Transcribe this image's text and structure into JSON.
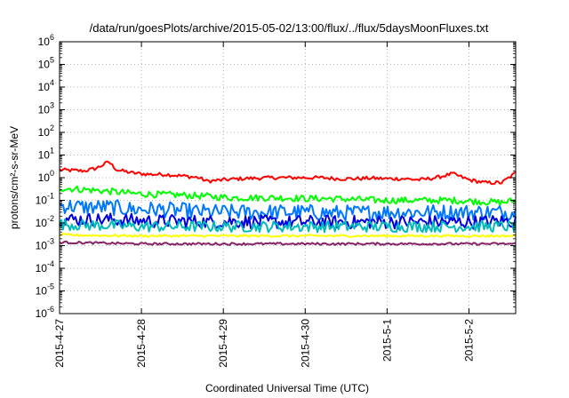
{
  "chart_data": {
    "type": "line",
    "title": "/data/run/goesPlots/archive/2015-05-02/13:00/flux/../flux/5daysMoonFluxes.txt",
    "xlabel": "Coordinated Universal Time (UTC)",
    "ylabel": "protons/cm²-s-sr-MeV",
    "yscale": "log",
    "ylim": [
      1e-06,
      1000000.0
    ],
    "xlim": [
      0,
      5.57
    ],
    "x_ticks": [
      {
        "x": 0,
        "label": "2015-4-27"
      },
      {
        "x": 1,
        "label": "2015-4-28"
      },
      {
        "x": 2,
        "label": "2015-4-29"
      },
      {
        "x": 3,
        "label": "2015-4-30"
      },
      {
        "x": 4,
        "label": "2015-5-1"
      },
      {
        "x": 5,
        "label": "2015-5-2"
      }
    ],
    "y_ticks": [
      {
        "exp": -6,
        "label": "10-6"
      },
      {
        "exp": -5,
        "label": "10-5"
      },
      {
        "exp": -4,
        "label": "10-4"
      },
      {
        "exp": -3,
        "label": "10-3"
      },
      {
        "exp": -2,
        "label": "10-2"
      },
      {
        "exp": -1,
        "label": "10-1"
      },
      {
        "exp": 0,
        "label": "100"
      },
      {
        "exp": 1,
        "label": "101"
      },
      {
        "exp": 2,
        "label": "102"
      },
      {
        "exp": 3,
        "label": "103"
      },
      {
        "exp": 4,
        "label": "104"
      },
      {
        "exp": 5,
        "label": "105"
      },
      {
        "exp": 6,
        "label": "106"
      }
    ],
    "grid": true,
    "series": [
      {
        "color": "#ff0000",
        "points": [
          [
            0,
            2.2
          ],
          [
            0.3,
            2.0
          ],
          [
            0.45,
            2.6
          ],
          [
            0.6,
            5.0
          ],
          [
            0.7,
            2.2
          ],
          [
            0.9,
            1.6
          ],
          [
            1.1,
            1.4
          ],
          [
            1.3,
            1.4
          ],
          [
            1.5,
            1.2
          ],
          [
            1.7,
            1.0
          ],
          [
            1.8,
            0.7
          ],
          [
            2.0,
            0.8
          ],
          [
            2.2,
            0.9
          ],
          [
            2.4,
            0.95
          ],
          [
            2.6,
            1.0
          ],
          [
            2.8,
            1.0
          ],
          [
            3.0,
            1.0
          ],
          [
            3.2,
            1.0
          ],
          [
            3.4,
            0.9
          ],
          [
            3.6,
            0.9
          ],
          [
            3.8,
            0.95
          ],
          [
            4.0,
            0.9
          ],
          [
            4.2,
            0.9
          ],
          [
            4.4,
            0.8
          ],
          [
            4.6,
            1.0
          ],
          [
            4.8,
            1.5
          ],
          [
            5.0,
            0.8
          ],
          [
            5.2,
            0.6
          ],
          [
            5.4,
            0.6
          ],
          [
            5.57,
            1.6
          ]
        ]
      },
      {
        "color": "#00ff00",
        "points": [
          [
            0,
            0.35
          ],
          [
            0.3,
            0.3
          ],
          [
            0.6,
            0.25
          ],
          [
            0.9,
            0.2
          ],
          [
            1.2,
            0.18
          ],
          [
            1.5,
            0.17
          ],
          [
            1.8,
            0.15
          ],
          [
            2.1,
            0.13
          ],
          [
            2.4,
            0.13
          ],
          [
            2.7,
            0.13
          ],
          [
            3.0,
            0.12
          ],
          [
            3.3,
            0.12
          ],
          [
            3.6,
            0.11
          ],
          [
            3.9,
            0.1
          ],
          [
            4.2,
            0.1
          ],
          [
            4.5,
            0.1
          ],
          [
            4.8,
            0.1
          ],
          [
            5.1,
            0.09
          ],
          [
            5.4,
            0.08
          ],
          [
            5.57,
            0.1
          ]
        ]
      },
      {
        "color": "#0077ff",
        "points": [
          [
            0,
            0.06
          ],
          [
            0.3,
            0.05
          ],
          [
            0.6,
            0.05
          ],
          [
            0.9,
            0.04
          ],
          [
            1.2,
            0.04
          ],
          [
            1.5,
            0.035
          ],
          [
            1.8,
            0.03
          ],
          [
            2.1,
            0.03
          ],
          [
            2.4,
            0.03
          ],
          [
            2.7,
            0.03
          ],
          [
            3.0,
            0.03
          ],
          [
            3.3,
            0.028
          ],
          [
            3.6,
            0.028
          ],
          [
            3.9,
            0.03
          ],
          [
            4.2,
            0.03
          ],
          [
            4.5,
            0.03
          ],
          [
            4.8,
            0.03
          ],
          [
            5.1,
            0.03
          ],
          [
            5.4,
            0.03
          ],
          [
            5.57,
            0.03
          ]
        ]
      },
      {
        "color": "#0000dd",
        "points": [
          [
            0,
            0.015
          ],
          [
            0.3,
            0.014
          ],
          [
            0.6,
            0.014
          ],
          [
            0.9,
            0.013
          ],
          [
            1.2,
            0.012
          ],
          [
            1.5,
            0.012
          ],
          [
            1.8,
            0.011
          ],
          [
            2.1,
            0.012
          ],
          [
            2.4,
            0.011
          ],
          [
            2.7,
            0.011
          ],
          [
            3.0,
            0.011
          ],
          [
            3.3,
            0.011
          ],
          [
            3.6,
            0.011
          ],
          [
            3.9,
            0.011
          ],
          [
            4.2,
            0.011
          ],
          [
            4.5,
            0.011
          ],
          [
            4.8,
            0.011
          ],
          [
            5.1,
            0.011
          ],
          [
            5.4,
            0.012
          ],
          [
            5.57,
            0.012
          ]
        ]
      },
      {
        "color": "#00bbbb",
        "points": [
          [
            0,
            0.009
          ],
          [
            0.3,
            0.008
          ],
          [
            0.6,
            0.008
          ],
          [
            0.9,
            0.007
          ],
          [
            1.2,
            0.007
          ],
          [
            1.5,
            0.007
          ],
          [
            1.8,
            0.007
          ],
          [
            2.1,
            0.007
          ],
          [
            2.4,
            0.007
          ],
          [
            2.7,
            0.007
          ],
          [
            3.0,
            0.007
          ],
          [
            3.3,
            0.007
          ],
          [
            3.6,
            0.007
          ],
          [
            3.9,
            0.007
          ],
          [
            4.2,
            0.007
          ],
          [
            4.5,
            0.007
          ],
          [
            4.8,
            0.007
          ],
          [
            5.1,
            0.007
          ],
          [
            5.4,
            0.007
          ],
          [
            5.57,
            0.007
          ]
        ]
      },
      {
        "color": "#ffff00",
        "points": [
          [
            0,
            0.003
          ],
          [
            0.5,
            0.0028
          ],
          [
            1.0,
            0.0027
          ],
          [
            1.5,
            0.0027
          ],
          [
            2.0,
            0.0027
          ],
          [
            2.5,
            0.0027
          ],
          [
            3.0,
            0.0027
          ],
          [
            3.5,
            0.0027
          ],
          [
            4.0,
            0.0027
          ],
          [
            4.5,
            0.0027
          ],
          [
            5.0,
            0.0027
          ],
          [
            5.57,
            0.0027
          ]
        ]
      },
      {
        "color": "#882266",
        "points": [
          [
            0,
            0.0014
          ],
          [
            0.5,
            0.0013
          ],
          [
            1.0,
            0.0012
          ],
          [
            1.5,
            0.0012
          ],
          [
            2.0,
            0.0012
          ],
          [
            2.5,
            0.0012
          ],
          [
            3.0,
            0.0012
          ],
          [
            3.5,
            0.0012
          ],
          [
            4.0,
            0.0012
          ],
          [
            4.5,
            0.0012
          ],
          [
            5.0,
            0.0012
          ],
          [
            5.57,
            0.0012
          ]
        ]
      }
    ]
  }
}
